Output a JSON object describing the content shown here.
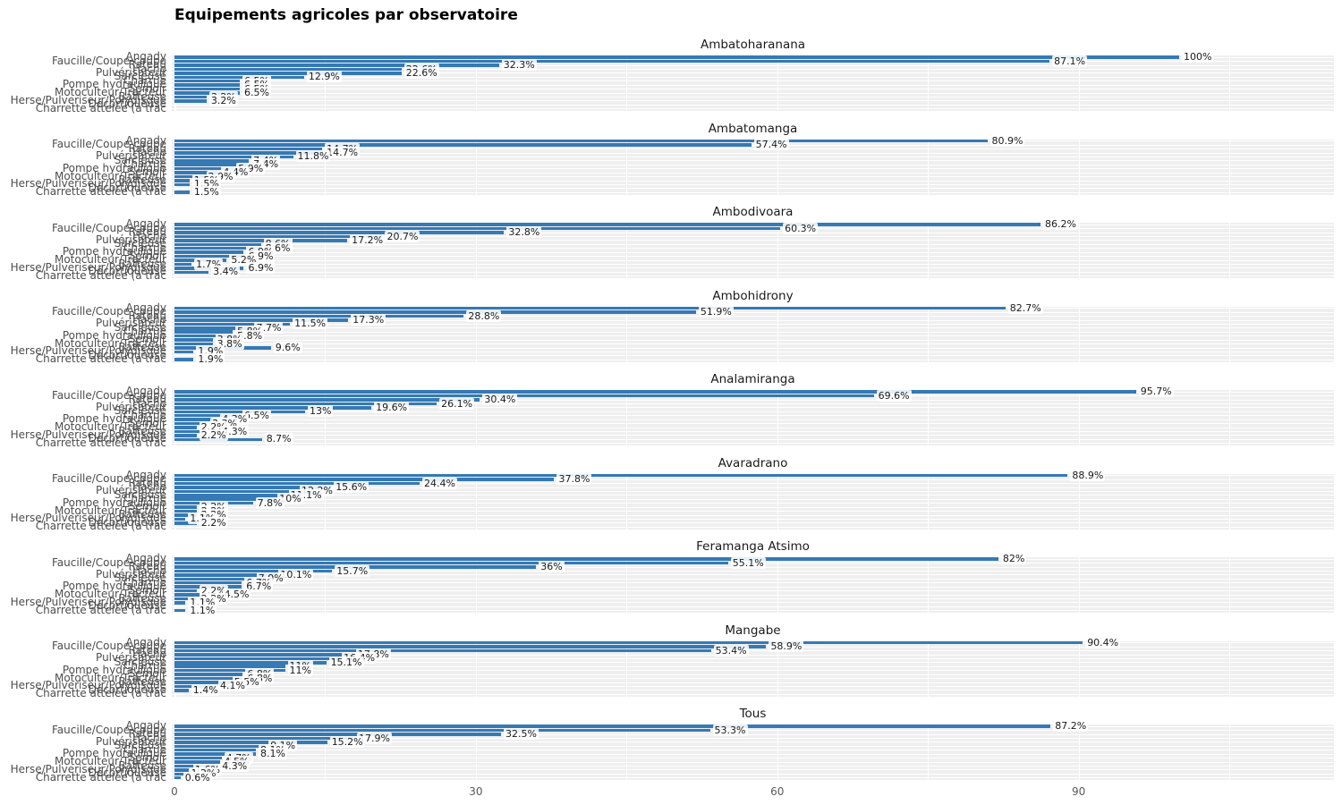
{
  "title": "Equipements agricoles par observatoire",
  "colors": {
    "bar": "#3579b5",
    "panel_bg": "#efefef",
    "grid": "#ffffff",
    "facet_title": "#1a1a1a",
    "axis_text": "#595959",
    "y_axis_text": "#4d4d4d",
    "bar_label_text": "#1a1a1a",
    "title_text": "#000000"
  },
  "chart_data": {
    "type": "bar",
    "orientation": "horizontal",
    "title": "Equipements agricoles par observatoire",
    "xlabel": "",
    "ylabel": "",
    "x_ticks": [
      0,
      30,
      60,
      90
    ],
    "xlim": [
      0,
      115
    ],
    "grid": true,
    "legend": false,
    "unit": "%",
    "categories": [
      "Angady",
      "Faucille/Coupe-coupe",
      "Rateau",
      "Hache",
      "Pulvérisateur",
      "Sarcleuse",
      "Charrue",
      "Pompe hydraulique",
      "Semoir",
      "Motoculteur/Tracteur",
      "Batteuse",
      "Herse/Pulveriseur/Polydisque",
      "Décortiqueuse",
      "Charrette attelée (à trac"
    ],
    "panels": [
      {
        "name": "Ambatoharanana",
        "values": [
          100,
          87.1,
          32.3,
          22.6,
          22.6,
          12.9,
          6.5,
          6.5,
          6.5,
          6.5,
          3.2,
          3.2,
          0,
          0
        ]
      },
      {
        "name": "Ambatomanga",
        "values": [
          80.9,
          57.4,
          14.7,
          14.7,
          11.8,
          7.4,
          7.4,
          5.9,
          4.4,
          2.9,
          1.5,
          1.5,
          0,
          1.5
        ]
      },
      {
        "name": "Ambodivoara",
        "values": [
          86.2,
          60.3,
          32.8,
          20.7,
          17.2,
          8.6,
          8.6,
          6.9,
          6.9,
          5.2,
          1.7,
          6.9,
          3.4,
          0
        ]
      },
      {
        "name": "Ambohidrony",
        "values": [
          82.7,
          51.9,
          28.8,
          17.3,
          11.5,
          7.7,
          5.8,
          5.8,
          3.8,
          3.8,
          9.6,
          1.9,
          0,
          1.9
        ]
      },
      {
        "name": "Analamiranga",
        "values": [
          95.7,
          69.6,
          30.4,
          26.1,
          19.6,
          13,
          6.5,
          4.3,
          3.3,
          2.2,
          4.3,
          2.2,
          8.7,
          0
        ]
      },
      {
        "name": "Avaradrano",
        "values": [
          88.9,
          37.8,
          24.4,
          15.6,
          12.2,
          11.1,
          10,
          7.8,
          2.2,
          2.2,
          2.2,
          1.1,
          2.2,
          0
        ]
      },
      {
        "name": "Feramanga Atsimo",
        "values": [
          82,
          55.1,
          36,
          15.7,
          10.1,
          7.9,
          6.7,
          6.7,
          2.2,
          4.5,
          2.2,
          1.1,
          0,
          1.1
        ]
      },
      {
        "name": "Mangabe",
        "values": [
          90.4,
          58.9,
          53.4,
          17.8,
          16.4,
          15.1,
          11,
          11,
          6.8,
          6.8,
          5.5,
          4.1,
          1.4,
          0
        ]
      },
      {
        "name": "Tous",
        "values": [
          87.2,
          53.3,
          32.5,
          17.9,
          15.2,
          9.1,
          8.1,
          8.1,
          4.7,
          4.5,
          4.3,
          1.6,
          1.2,
          0.6
        ]
      }
    ]
  }
}
